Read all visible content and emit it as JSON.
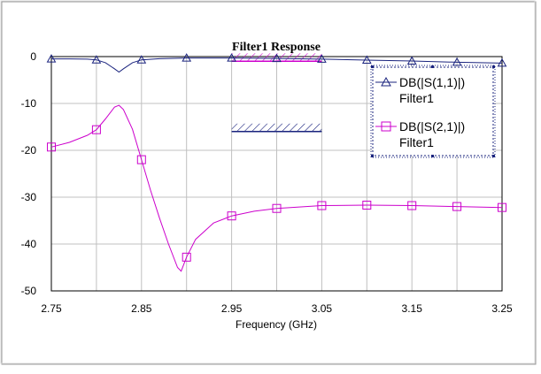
{
  "chart_data": {
    "type": "line",
    "title": "Filter1 Response",
    "xlabel": "Frequency (GHz)",
    "ylabel": "",
    "xlim": [
      2.75,
      3.25
    ],
    "ylim": [
      -50,
      0
    ],
    "x_ticks": [
      "2.75",
      "2.85",
      "2.95",
      "3.05",
      "3.15",
      "3.25"
    ],
    "x_tick_values": [
      2.75,
      2.85,
      2.95,
      3.05,
      3.15,
      3.25
    ],
    "y_ticks": [
      "0",
      "-10",
      "-20",
      "-30",
      "-40",
      "-50"
    ],
    "y_tick_values": [
      0,
      -10,
      -20,
      -30,
      -40,
      -50
    ],
    "grid": true,
    "legend_position": "top-right",
    "series": [
      {
        "name": "DB(|S(1,1)|)",
        "legend_sub": "Filter1",
        "color": "#1a237e",
        "marker": "triangle",
        "curve": [
          [
            2.75,
            -0.5
          ],
          [
            2.77,
            -0.5
          ],
          [
            2.79,
            -0.55
          ],
          [
            2.8,
            -0.7
          ],
          [
            2.81,
            -1.3
          ],
          [
            2.82,
            -2.6
          ],
          [
            2.825,
            -3.3
          ],
          [
            2.83,
            -2.6
          ],
          [
            2.84,
            -1.3
          ],
          [
            2.85,
            -0.7
          ],
          [
            2.87,
            -0.45
          ],
          [
            2.9,
            -0.3
          ],
          [
            2.95,
            -0.3
          ],
          [
            3.0,
            -0.4
          ],
          [
            3.05,
            -0.55
          ],
          [
            3.1,
            -0.75
          ],
          [
            3.15,
            -0.95
          ],
          [
            3.2,
            -1.2
          ],
          [
            3.25,
            -1.4
          ]
        ],
        "markers_x": [
          2.75,
          2.8,
          2.85,
          2.9,
          2.95,
          3.0,
          3.05,
          3.1,
          3.15,
          3.2,
          3.25
        ]
      },
      {
        "name": "DB(|S(2,1)|)",
        "legend_sub": "Filter1",
        "color": "#cc00cc",
        "marker": "square",
        "curve": [
          [
            2.75,
            -19.3
          ],
          [
            2.77,
            -18.3
          ],
          [
            2.79,
            -16.8
          ],
          [
            2.8,
            -15.6
          ],
          [
            2.81,
            -13.3
          ],
          [
            2.82,
            -10.8
          ],
          [
            2.825,
            -10.4
          ],
          [
            2.83,
            -11.3
          ],
          [
            2.84,
            -15.5
          ],
          [
            2.85,
            -22.0
          ],
          [
            2.86,
            -28.5
          ],
          [
            2.87,
            -34.5
          ],
          [
            2.88,
            -40.0
          ],
          [
            2.89,
            -45.0
          ],
          [
            2.894,
            -45.8
          ],
          [
            2.9,
            -42.8
          ],
          [
            2.91,
            -39.0
          ],
          [
            2.93,
            -35.5
          ],
          [
            2.95,
            -34.0
          ],
          [
            2.975,
            -33.0
          ],
          [
            3.0,
            -32.4
          ],
          [
            3.05,
            -31.8
          ],
          [
            3.1,
            -31.7
          ],
          [
            3.15,
            -31.8
          ],
          [
            3.2,
            -32.0
          ],
          [
            3.25,
            -32.2
          ]
        ],
        "markers_x": [
          2.75,
          2.8,
          2.85,
          2.9,
          2.95,
          3.0,
          3.05,
          3.1,
          3.15,
          3.2,
          3.25
        ]
      }
    ],
    "goals": [
      {
        "name": "s11-goal",
        "x": [
          2.95,
          3.05
        ],
        "y": -1,
        "hatch": "above",
        "color": "#cc00cc"
      },
      {
        "name": "s21-goal",
        "x": [
          2.95,
          3.05
        ],
        "y": -16,
        "hatch": "above",
        "color": "#1a237e"
      }
    ]
  }
}
